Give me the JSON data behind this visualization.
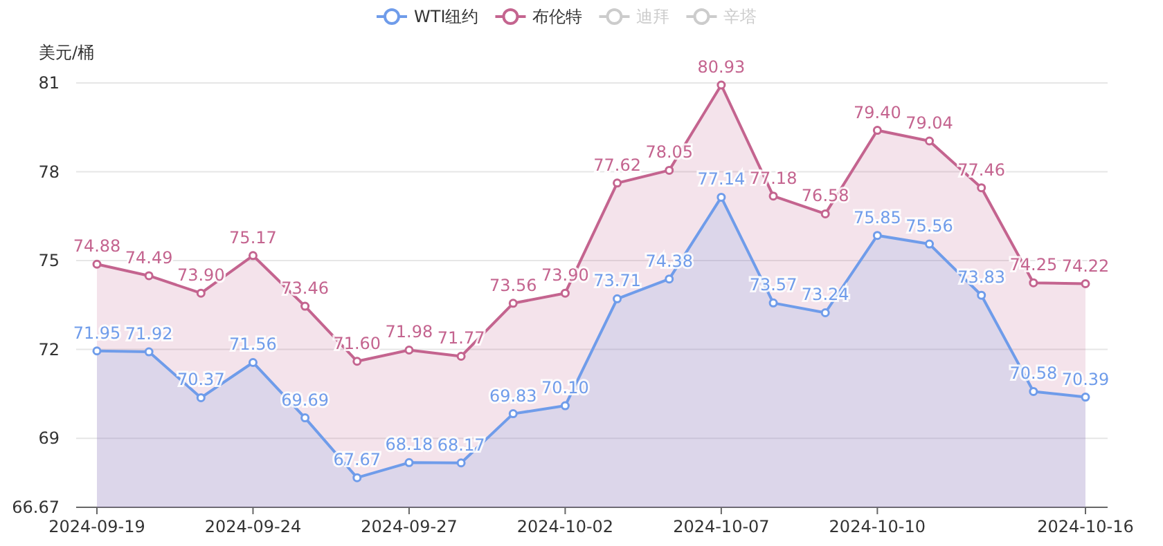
{
  "chart_data": {
    "type": "area",
    "ylabel": "美元/桶",
    "categories": [
      "2024-09-19",
      null,
      null,
      "2024-09-24",
      null,
      null,
      "2024-09-27",
      null,
      null,
      "2024-10-02",
      null,
      null,
      "2024-10-07",
      null,
      null,
      "2024-10-10",
      null,
      null,
      null,
      "2024-10-16"
    ],
    "ylim": [
      66.67,
      81
    ],
    "yticks": [
      66.67,
      69,
      72,
      75,
      78,
      81
    ],
    "grid": "y",
    "legend": "top",
    "marker": "circle",
    "line_style": "solid",
    "series": [
      {
        "name": "WTI纽约",
        "color": "#6f9cea",
        "values": [
          71.95,
          71.92,
          70.37,
          71.56,
          69.69,
          67.67,
          68.18,
          68.17,
          69.83,
          70.1,
          73.71,
          74.38,
          77.14,
          73.57,
          73.24,
          75.85,
          75.56,
          73.83,
          70.58,
          70.39
        ],
        "value_labels": [
          "71.95",
          "71.92",
          "70.37",
          "71.56",
          "69.69",
          "67.67",
          "68.18",
          "68.17",
          "69.83",
          "70.10",
          "73.71",
          "74.38",
          "77.14",
          "73.57",
          "73.24",
          "75.85",
          "75.56",
          "73.83",
          "70.58",
          "70.39"
        ]
      },
      {
        "name": "布伦特",
        "color": "#c4648f",
        "values": [
          74.88,
          74.49,
          73.9,
          75.17,
          73.46,
          71.6,
          71.98,
          71.77,
          73.56,
          73.9,
          77.62,
          78.05,
          80.93,
          77.18,
          76.58,
          79.4,
          79.04,
          77.46,
          74.25,
          74.22
        ],
        "value_labels": [
          "74.88",
          "74.49",
          "73.90",
          "75.17",
          "73.46",
          "71.60",
          "71.98",
          "71.77",
          "73.56",
          "73.90",
          "77.62",
          "78.05",
          "80.93",
          "77.18",
          "76.58",
          "79.40",
          "79.04",
          "77.46",
          "74.25",
          "74.22"
        ]
      },
      {
        "name": "迪拜",
        "color": "#cccccc",
        "values": [
          null,
          null,
          null,
          null,
          null,
          null,
          null,
          null,
          null,
          null,
          null,
          null,
          null,
          null,
          null,
          null,
          null,
          null,
          null,
          null
        ]
      },
      {
        "name": "辛塔",
        "color": "#cccccc",
        "values": [
          null,
          null,
          null,
          null,
          null,
          null,
          null,
          null,
          null,
          null,
          null,
          null,
          null,
          null,
          null,
          null,
          null,
          null,
          null,
          null
        ]
      }
    ]
  }
}
